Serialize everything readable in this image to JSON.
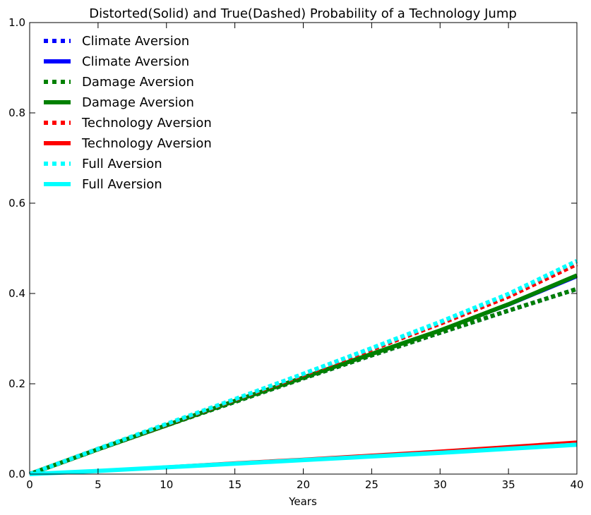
{
  "chart_data": {
    "type": "line",
    "title": "Distorted(Solid) and True(Dashed) Probability of a Technology Jump",
    "xlabel": "Years",
    "ylabel": "",
    "xlim": [
      0,
      40
    ],
    "ylim": [
      0,
      1.0
    ],
    "x_ticks": [
      0,
      5,
      10,
      15,
      20,
      25,
      30,
      35,
      40
    ],
    "y_ticks": [
      0.0,
      0.2,
      0.4,
      0.6,
      0.8,
      1.0
    ],
    "x_tick_labels": [
      "0",
      "5",
      "10",
      "15",
      "20",
      "25",
      "30",
      "35",
      "40"
    ],
    "y_tick_labels": [
      "0.0",
      "0.2",
      "0.4",
      "0.6",
      "0.8",
      "1.0"
    ],
    "grid": false,
    "legend_position": "top-left",
    "x": [
      0,
      5,
      10,
      15,
      20,
      25,
      30,
      35,
      40
    ],
    "series": [
      {
        "name": "Climate Aversion",
        "style": "dotted",
        "color": "#0000ff",
        "values": [
          0.0,
          0.055,
          0.108,
          0.16,
          0.212,
          0.263,
          0.313,
          0.362,
          0.41
        ]
      },
      {
        "name": "Climate Aversion",
        "style": "solid",
        "color": "#0000ff",
        "values": [
          0.0,
          0.055,
          0.108,
          0.162,
          0.214,
          0.266,
          0.317,
          0.373,
          0.436
        ]
      },
      {
        "name": "Damage Aversion",
        "style": "dotted",
        "color": "#008000",
        "values": [
          0.0,
          0.055,
          0.108,
          0.16,
          0.212,
          0.263,
          0.313,
          0.362,
          0.41
        ]
      },
      {
        "name": "Damage Aversion",
        "style": "solid",
        "color": "#008000",
        "values": [
          0.0,
          0.055,
          0.108,
          0.162,
          0.214,
          0.266,
          0.318,
          0.376,
          0.44
        ]
      },
      {
        "name": "Technology Aversion",
        "style": "dotted",
        "color": "#ff0000",
        "values": [
          0.0,
          0.056,
          0.11,
          0.165,
          0.22,
          0.276,
          0.333,
          0.393,
          0.465
        ]
      },
      {
        "name": "Technology Aversion",
        "style": "solid",
        "color": "#ff0000",
        "values": [
          0.0,
          0.008,
          0.017,
          0.026,
          0.034,
          0.043,
          0.052,
          0.062,
          0.072
        ]
      },
      {
        "name": "Full Aversion",
        "style": "dotted",
        "color": "#00ffff",
        "values": [
          0.0,
          0.056,
          0.111,
          0.166,
          0.222,
          0.279,
          0.337,
          0.399,
          0.472
        ]
      },
      {
        "name": "Full Aversion",
        "style": "solid",
        "color": "#00ffff",
        "values": [
          0.0,
          0.007,
          0.015,
          0.023,
          0.031,
          0.039,
          0.047,
          0.056,
          0.065
        ]
      }
    ]
  }
}
